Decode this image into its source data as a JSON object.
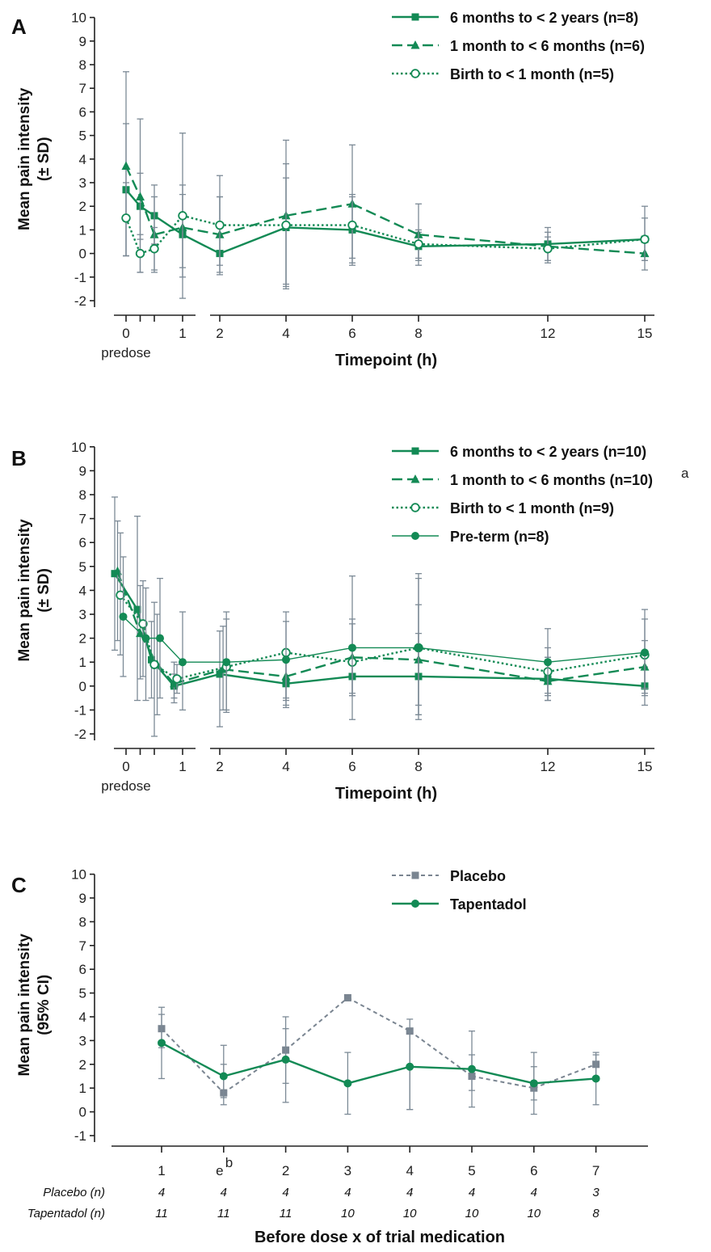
{
  "colors": {
    "green": "#138a55",
    "gray": "#7c8a96",
    "placebo": "#7a8591",
    "axis": "#222222"
  },
  "chart_data": [
    {
      "panel": "A",
      "type": "line",
      "ylabel_lines": [
        "Mean pain intensity",
        "(± SD)"
      ],
      "xlabel": "Timepoint (h)",
      "ylim": [
        -2,
        10
      ],
      "yticks": [
        -2,
        -1,
        0,
        1,
        2,
        3,
        4,
        5,
        6,
        7,
        8,
        9,
        10
      ],
      "xticks": [
        {
          "value": 0,
          "label": "0"
        },
        {
          "value": 1,
          "label": "1"
        },
        {
          "value": 2,
          "label": "2"
        },
        {
          "value": 4,
          "label": "4"
        },
        {
          "value": 6,
          "label": "6"
        },
        {
          "value": 8,
          "label": "8"
        },
        {
          "value": 12,
          "label": "12"
        },
        {
          "value": 15,
          "label": "15"
        }
      ],
      "predose_label": "predose",
      "series": [
        {
          "name": "6 months to < 2 years (n=8)",
          "style": "solid",
          "marker": "square",
          "x": [
            0,
            0.25,
            0.5,
            1,
            2,
            4,
            6,
            8,
            12,
            15
          ],
          "y": [
            2.7,
            2.0,
            1.6,
            0.8,
            0.0,
            1.1,
            1.0,
            0.3,
            0.4,
            0.6
          ],
          "err_low": [
            -0.1,
            0.6,
            0.4,
            -1.0,
            -0.8,
            -1.5,
            -0.5,
            -0.3,
            -0.3,
            -0.3
          ],
          "err_high": [
            5.5,
            3.4,
            2.9,
            2.5,
            2.4,
            3.2,
            2.5,
            0.9,
            1.1,
            2.0
          ]
        },
        {
          "name": "1 month to < 6 months (n=6)",
          "style": "dashed",
          "marker": "triangle",
          "x": [
            0,
            0.25,
            0.5,
            1,
            2,
            4,
            6,
            8,
            12,
            15
          ],
          "y": [
            3.7,
            2.4,
            0.8,
            1.1,
            0.8,
            1.6,
            2.1,
            0.8,
            0.3,
            0.0
          ],
          "err_low": [
            -0.1,
            -0.8,
            -0.8,
            -1.9,
            -0.9,
            -1.4,
            -0.4,
            -0.5,
            -0.4,
            -0.7
          ],
          "err_high": [
            7.7,
            5.7,
            2.4,
            2.9,
            3.3,
            4.8,
            4.6,
            2.1,
            0.9,
            0.6
          ]
        },
        {
          "name": "Birth to < 1 month (n=5)",
          "style": "dotted",
          "marker": "circle-open",
          "x": [
            0,
            0.25,
            0.5,
            1,
            2,
            4,
            6,
            8,
            12,
            15
          ],
          "y": [
            1.5,
            0.0,
            0.2,
            1.6,
            1.2,
            1.2,
            1.2,
            0.4,
            0.2,
            0.6
          ],
          "err_low": [
            -0.1,
            -0.8,
            -0.7,
            -0.6,
            -0.5,
            -1.3,
            -0.2,
            -0.2,
            -0.3,
            -0.3
          ],
          "err_high": [
            3.0,
            0.8,
            1.1,
            5.1,
            2.4,
            3.8,
            2.4,
            1.0,
            0.7,
            1.5
          ]
        }
      ]
    },
    {
      "panel": "B",
      "type": "line",
      "ylabel_lines": [
        "Mean pain intensity",
        "(± SD)"
      ],
      "xlabel": "Timepoint (h)",
      "ylim": [
        -2,
        10
      ],
      "yticks": [
        -2,
        -1,
        0,
        1,
        2,
        3,
        4,
        5,
        6,
        7,
        8,
        9,
        10
      ],
      "xticks": [
        {
          "value": 0,
          "label": "0"
        },
        {
          "value": 1,
          "label": "1"
        },
        {
          "value": 2,
          "label": "2"
        },
        {
          "value": 4,
          "label": "4"
        },
        {
          "value": 6,
          "label": "6"
        },
        {
          "value": 8,
          "label": "8"
        },
        {
          "value": 12,
          "label": "12"
        },
        {
          "value": 15,
          "label": "15"
        }
      ],
      "predose_label": "predose",
      "legend_superscript": "a",
      "series": [
        {
          "name": "6 months to < 2 years (n=10)",
          "style": "solid",
          "marker": "square",
          "x": [
            -0.2,
            0.2,
            0.45,
            0.85,
            2,
            4,
            6,
            8,
            12,
            15
          ],
          "y": [
            4.7,
            3.2,
            1.1,
            0.0,
            0.5,
            0.1,
            0.4,
            0.4,
            0.3,
            0.0
          ],
          "err_low": [
            1.5,
            -0.6,
            -0.5,
            -0.5,
            -1.7,
            -0.8,
            -0.4,
            -1.2,
            -0.6,
            -0.8
          ],
          "err_high": [
            7.9,
            7.1,
            2.7,
            0.5,
            2.3,
            1.2,
            1.2,
            2.2,
            1.2,
            0.8
          ]
        },
        {
          "name": "1 month to < 6 months (n=10)",
          "style": "dashed",
          "marker": "triangle",
          "x": [
            -0.15,
            0.25,
            0.55,
            0.85,
            2.1,
            4,
            6,
            8,
            12,
            15
          ],
          "y": [
            4.8,
            2.2,
            0.9,
            0.1,
            0.7,
            0.4,
            1.2,
            1.1,
            0.2,
            0.8
          ],
          "err_low": [
            1.9,
            0.3,
            -1.2,
            -0.7,
            -1.0,
            -0.6,
            -0.3,
            -0.8,
            -0.6,
            -0.3
          ],
          "err_high": [
            6.9,
            4.2,
            3.0,
            1.0,
            2.5,
            1.4,
            2.8,
            3.4,
            1.2,
            1.9
          ]
        },
        {
          "name": "Birth to < 1 month (n=9)",
          "style": "dotted",
          "marker": "circle-open",
          "x": [
            -0.1,
            0.3,
            0.5,
            0.9,
            2.2,
            4,
            6,
            8,
            12,
            15
          ],
          "y": [
            3.8,
            2.6,
            0.9,
            0.3,
            0.8,
            1.4,
            1.0,
            1.6,
            0.6,
            1.3
          ],
          "err_low": [
            1.3,
            0.4,
            -2.1,
            -0.3,
            -1.1,
            -0.5,
            -0.4,
            -1.2,
            -0.3,
            -0.1
          ],
          "err_high": [
            6.4,
            4.4,
            3.5,
            0.9,
            2.8,
            3.1,
            2.6,
            4.5,
            1.6,
            2.8
          ]
        },
        {
          "name": "Pre-term (n=8)",
          "style": "thin",
          "marker": "circle",
          "x": [
            -0.05,
            0.35,
            0.6,
            1,
            2.2,
            4,
            6,
            8,
            12,
            15
          ],
          "y": [
            2.9,
            2.0,
            2.0,
            1.0,
            1.0,
            1.1,
            1.6,
            1.6,
            1.0,
            1.4
          ],
          "err_low": [
            0.4,
            -0.6,
            -0.5,
            -1.0,
            -1.0,
            -0.9,
            -1.4,
            -1.4,
            -0.4,
            -0.4
          ],
          "err_high": [
            5.4,
            4.1,
            4.5,
            3.1,
            3.1,
            2.7,
            4.6,
            4.7,
            2.4,
            3.2
          ]
        }
      ]
    },
    {
      "panel": "C",
      "type": "line",
      "ylabel_lines": [
        "Mean pain intensity",
        "(95% CI)"
      ],
      "xlabel": "Before dose x of trial medication",
      "ylim": [
        -1,
        10
      ],
      "yticks": [
        -1,
        0,
        1,
        2,
        3,
        4,
        5,
        6,
        7,
        8,
        9,
        10
      ],
      "categories": [
        "1",
        "e",
        "2",
        "3",
        "4",
        "5",
        "6",
        "7"
      ],
      "category_superscripts": [
        "",
        "b",
        "",
        "",
        "",
        "",
        "",
        ""
      ],
      "series": [
        {
          "name": "Placebo",
          "style": "dashed-gray",
          "marker": "square-gray",
          "values": [
            3.5,
            0.8,
            2.6,
            4.8,
            3.4,
            1.5,
            1.0,
            2.0
          ],
          "err_low": [
            2.7,
            0.3,
            1.2,
            4.8,
            0.1,
            0.2,
            -0.1,
            1.4
          ],
          "err_high": [
            4.4,
            2.8,
            4.0,
            4.8,
            3.9,
            3.4,
            2.5,
            2.5
          ]
        },
        {
          "name": "Tapentadol",
          "style": "solid",
          "marker": "circle",
          "values": [
            2.9,
            1.5,
            2.2,
            1.2,
            1.9,
            1.8,
            1.2,
            1.4
          ],
          "err_low": [
            1.4,
            0.6,
            0.4,
            -0.1,
            0.1,
            0.9,
            0.5,
            0.3
          ],
          "err_high": [
            4.1,
            2.0,
            3.5,
            2.5,
            3.4,
            2.4,
            1.9,
            2.4
          ]
        }
      ],
      "n_rows": [
        {
          "label": "Placebo (n)",
          "values": [
            "4",
            "4",
            "4",
            "4",
            "4",
            "4",
            "4",
            "3"
          ]
        },
        {
          "label": "Tapentadol (n)",
          "values": [
            "11",
            "11",
            "11",
            "10",
            "10",
            "10",
            "10",
            "8"
          ]
        }
      ]
    }
  ]
}
